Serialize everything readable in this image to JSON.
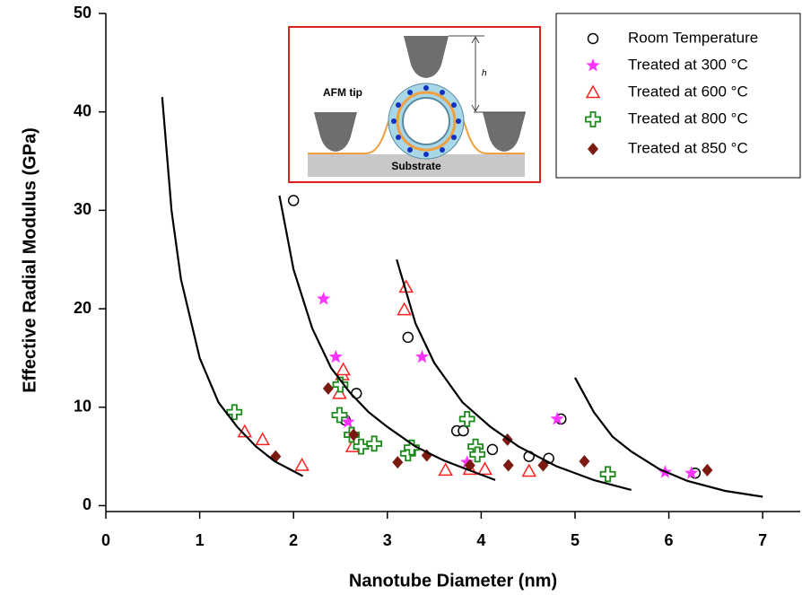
{
  "chart_data": {
    "type": "scatter",
    "xlabel": "Nanotube Diameter (nm)",
    "ylabel": "Effective Radial Modulus (GPa)",
    "xlim": [
      0,
      7.4
    ],
    "ylim": [
      -0.6,
      50
    ],
    "xticks": [
      0,
      1,
      2,
      3,
      4,
      5,
      6,
      7
    ],
    "yticks": [
      0,
      10,
      20,
      30,
      40,
      50
    ],
    "annotations": [
      "AFM tip",
      "h",
      "Substrate"
    ],
    "series": [
      {
        "name": "Room Temperature",
        "marker": "circle",
        "color": "#000000",
        "x": [
          2.0,
          2.67,
          2.55,
          3.22,
          3.74,
          3.81,
          4.12,
          4.51,
          4.72,
          4.85,
          6.28
        ],
        "values": [
          31.0,
          11.4,
          8.7,
          17.1,
          7.6,
          7.6,
          5.7,
          5.0,
          4.8,
          8.8,
          3.3
        ]
      },
      {
        "name": "Treated at 300 °C",
        "marker": "star",
        "color": "#ff33ff",
        "x": [
          2.32,
          2.45,
          2.58,
          3.37,
          3.85,
          4.81,
          5.96,
          6.24
        ],
        "values": [
          21.0,
          15.1,
          8.5,
          15.1,
          4.4,
          8.8,
          3.4,
          3.3
        ]
      },
      {
        "name": "Treated at 600 °C",
        "marker": "triangle",
        "color": "#ff2020",
        "x": [
          1.48,
          1.67,
          2.09,
          2.49,
          2.52,
          2.53,
          2.63,
          3.2,
          3.18,
          3.62,
          3.88,
          4.04,
          4.51
        ],
        "values": [
          7.5,
          6.7,
          4.1,
          11.4,
          13.3,
          13.8,
          6.0,
          22.2,
          19.9,
          3.6,
          3.7,
          3.7,
          3.5
        ]
      },
      {
        "name": "Treated at 800 °C",
        "marker": "cross",
        "color": "#1a8a1a",
        "x": [
          1.37,
          2.5,
          2.49,
          2.62,
          2.72,
          2.86,
          3.22,
          3.26,
          3.85,
          3.94,
          3.96,
          5.35
        ],
        "values": [
          9.5,
          12.3,
          9.2,
          7.2,
          6.0,
          6.3,
          5.3,
          5.9,
          8.8,
          6.0,
          5.2,
          3.2
        ]
      },
      {
        "name": "Treated at 850 °C",
        "marker": "diamond",
        "color": "#7b1a10",
        "x": [
          1.81,
          2.37,
          2.64,
          3.11,
          3.42,
          3.88,
          4.28,
          4.29,
          4.66,
          5.1,
          6.41
        ],
        "values": [
          5.0,
          11.9,
          7.2,
          4.4,
          5.1,
          4.1,
          6.7,
          4.1,
          4.1,
          4.5,
          3.6
        ]
      },
      {
        "marker": "line",
        "color": "#000000",
        "x": [
          0.6,
          0.7,
          0.8,
          1.0,
          1.2,
          1.4,
          1.6,
          1.8,
          2.1
        ],
        "values": [
          41.5,
          30,
          23,
          15,
          10.5,
          8,
          6,
          4.5,
          3.0
        ]
      },
      {
        "marker": "line",
        "color": "#000000",
        "x": [
          1.85,
          2.0,
          2.2,
          2.4,
          2.6,
          2.8,
          3.0,
          3.3,
          3.6,
          3.9,
          4.15
        ],
        "values": [
          31.5,
          24,
          18,
          14,
          11.5,
          9.5,
          8,
          6,
          4.6,
          3.5,
          2.6
        ]
      },
      {
        "marker": "line",
        "color": "#000000",
        "x": [
          3.1,
          3.3,
          3.5,
          3.8,
          4.1,
          4.4,
          4.8,
          5.2,
          5.6
        ],
        "values": [
          25,
          18.5,
          14.5,
          10.5,
          8,
          6,
          4,
          2.6,
          1.6
        ]
      },
      {
        "marker": "line",
        "color": "#000000",
        "x": [
          5.0,
          5.2,
          5.4,
          5.6,
          5.9,
          6.2,
          6.6,
          7.0
        ],
        "values": [
          13,
          9.5,
          7,
          5.5,
          3.7,
          2.5,
          1.5,
          0.9
        ]
      }
    ]
  }
}
